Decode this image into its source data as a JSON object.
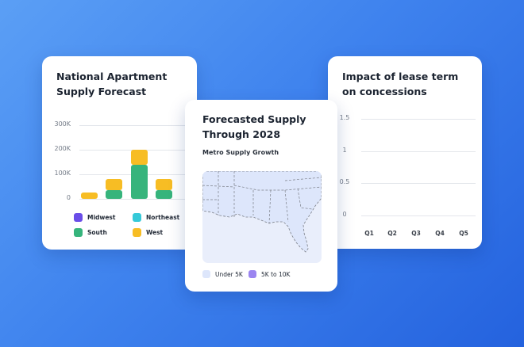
{
  "supply_card": {
    "title_line1": "National Apartment",
    "title_line2": "Supply Forecast",
    "y_ticks": [
      "300K",
      "200K",
      "100K",
      "0"
    ],
    "legend": [
      {
        "label": "Midwest",
        "color": "#6a4de8"
      },
      {
        "label": "Northeast",
        "color": "#35c9d8"
      },
      {
        "label": "South",
        "color": "#36b47c"
      },
      {
        "label": "West",
        "color": "#f7bd24"
      }
    ]
  },
  "map_card": {
    "title_line1": "Forecasted Supply",
    "title_line2": "Through 2028",
    "subtitle": "Metro Supply Growth",
    "legend": [
      {
        "label": "Under 5K",
        "color": "#dde6fb"
      },
      {
        "label": "5K to 10K",
        "color": "#9b85f0"
      }
    ]
  },
  "lease_card": {
    "title_line1": "Impact of lease term",
    "title_line2": "on concessions",
    "y_ticks": [
      "1.5",
      "1",
      "0.5",
      "0"
    ],
    "x_ticks": [
      "Q1",
      "Q2",
      "Q3",
      "Q4",
      "Q5"
    ]
  },
  "chart_data": [
    {
      "type": "bar",
      "title": "National Apartment Supply Forecast",
      "categories": [
        "",
        "",
        "",
        ""
      ],
      "ylim": [
        0,
        300000
      ],
      "y_ticks": [
        "300K",
        "200K",
        "100K",
        "0"
      ],
      "stacked": true,
      "series": [
        {
          "name": "South",
          "color": "#36b47c",
          "values": [
            0,
            35000,
            140000,
            35000
          ]
        },
        {
          "name": "West",
          "color": "#f7bd24",
          "values": [
            25000,
            45000,
            60000,
            45000
          ]
        }
      ],
      "legend": [
        "Midwest",
        "Northeast",
        "South",
        "West"
      ],
      "grid": true
    },
    {
      "type": "line",
      "title": "Impact of lease term on concessions",
      "categories": [
        "Q1",
        "Q2",
        "Q3",
        "Q4",
        "Q5"
      ],
      "ylim": [
        0,
        1.5
      ],
      "y_ticks": [
        "1.5",
        "1",
        "0.5",
        "0"
      ],
      "series": [],
      "grid": true
    }
  ]
}
